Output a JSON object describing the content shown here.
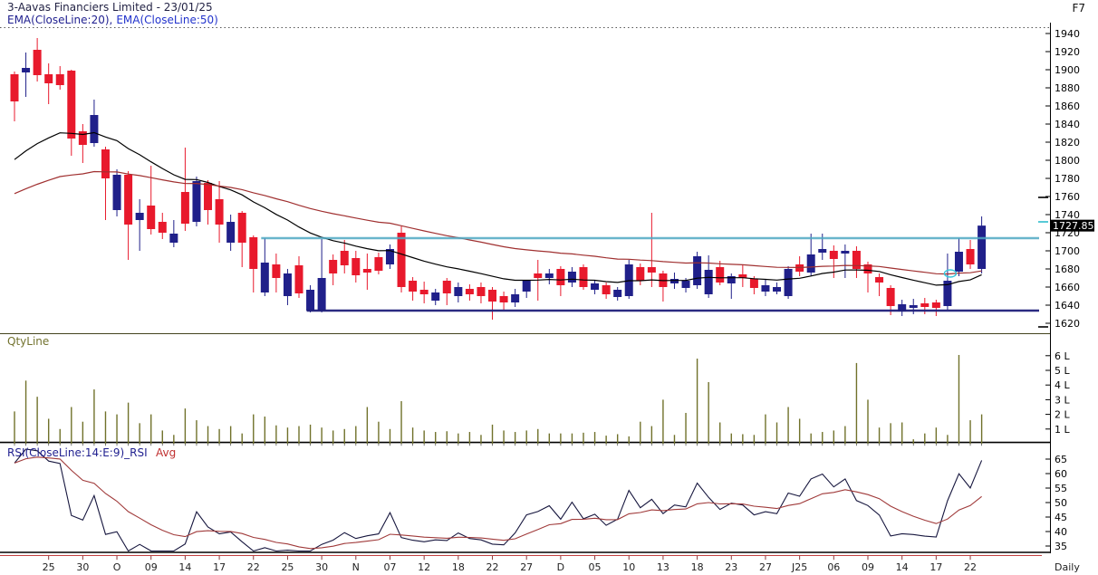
{
  "header": {
    "title": "3-Aavas Financiers Limited - 23/01/25",
    "ema20_label": "EMA(CloseLine:20),",
    "ema50_label": "EMA(CloseLine:50)",
    "hotkey": "F7"
  },
  "panels": {
    "volume_label": "QtyLine",
    "rsi_label": "RSI(CloseLine:14:E:9)_RSI",
    "rsi_avg_label": "Avg",
    "timeframe": "Daily",
    "last_price_tag": "1727.85"
  },
  "colors": {
    "bull": "#20208A",
    "bear": "#E8192C",
    "ema20": "#000000",
    "ema50": "#A03030",
    "resistance": "#4FA8C2",
    "support": "#1F1F7A",
    "volume": "#70712A",
    "rsi": "#16163E",
    "rsi_avg": "#A03A3A",
    "tag_bg": "#000000",
    "tag_fg": "#FFFFFF",
    "marker": "#35C8DC",
    "date_tick": "#8B3A3A",
    "rsi_baseline": "#C24040"
  },
  "overlays": {
    "resistance_price": 1714,
    "resistance_start_index": 22,
    "support_price": 1634,
    "support_start_index": 26,
    "right_edge_dashes": [
      {
        "price": 1759,
        "color": "#000000"
      },
      {
        "price": 1732,
        "color": "#2FBCCB"
      },
      {
        "price": 1616,
        "color": "#000000"
      }
    ],
    "signal_marker": {
      "index": 82,
      "price": 1675
    }
  },
  "indicators": {
    "ema20": {
      "period": 20,
      "seed": 1794
    },
    "ema50": {
      "period": 50,
      "seed": 1759
    },
    "rsi": {
      "period": 14,
      "avg_period": 9,
      "seed_gain": 7.0,
      "seed_loss": 4.0
    }
  },
  "chart_data": {
    "type": "candlestick",
    "title": "3-Aavas Financiers Limited - 23/01/25",
    "timeframe": "Daily",
    "last_close": 1727.85,
    "price_axis": {
      "min": 1620,
      "max": 1940,
      "step": 20
    },
    "volume_axis_ticks": [
      "1 L",
      "2 L",
      "3 L",
      "4 L",
      "5 L",
      "6 L"
    ],
    "rsi_axis_ticks": [
      65,
      60,
      55,
      50,
      45,
      40,
      35
    ],
    "x_tick_labels": [
      "25",
      "30",
      "O",
      "09",
      "14",
      "17",
      "22",
      "25",
      "30",
      "N",
      "07",
      "12",
      "18",
      "22",
      "27",
      "D",
      "05",
      "10",
      "13",
      "18",
      "23",
      "27",
      "J25",
      "06",
      "09",
      "14",
      "17",
      "22"
    ],
    "x_tick_start": 3,
    "x_tick_step": 3,
    "ohlc": [
      [
        1895,
        1898,
        1843,
        1865
      ],
      [
        1897,
        1919,
        1870,
        1902
      ],
      [
        1922,
        1935,
        1887,
        1894
      ],
      [
        1895,
        1907,
        1862,
        1885
      ],
      [
        1895,
        1904,
        1878,
        1883
      ],
      [
        1899,
        1900,
        1805,
        1824
      ],
      [
        1832,
        1840,
        1797,
        1817
      ],
      [
        1819,
        1867,
        1815,
        1850
      ],
      [
        1812,
        1815,
        1734,
        1780
      ],
      [
        1745,
        1790,
        1738,
        1784
      ],
      [
        1784,
        1788,
        1690,
        1729
      ],
      [
        1734,
        1757,
        1700,
        1742
      ],
      [
        1750,
        1794,
        1718,
        1724
      ],
      [
        1732,
        1742,
        1713,
        1720
      ],
      [
        1709,
        1734,
        1704,
        1719
      ],
      [
        1765,
        1814,
        1722,
        1730
      ],
      [
        1732,
        1782,
        1727,
        1777
      ],
      [
        1775,
        1778,
        1729,
        1745
      ],
      [
        1757,
        1777,
        1709,
        1729
      ],
      [
        1709,
        1740,
        1700,
        1732
      ],
      [
        1742,
        1744,
        1682,
        1709
      ],
      [
        1715,
        1717,
        1654,
        1680
      ],
      [
        1654,
        1714,
        1650,
        1687
      ],
      [
        1685,
        1697,
        1654,
        1670
      ],
      [
        1650,
        1680,
        1640,
        1675
      ],
      [
        1684,
        1694,
        1648,
        1653
      ],
      [
        1634,
        1662,
        1632,
        1657
      ],
      [
        1634,
        1713,
        1632,
        1670
      ],
      [
        1690,
        1696,
        1662,
        1675
      ],
      [
        1700,
        1712,
        1675,
        1684
      ],
      [
        1692,
        1700,
        1665,
        1673
      ],
      [
        1680,
        1697,
        1657,
        1676
      ],
      [
        1693,
        1698,
        1674,
        1678
      ],
      [
        1685,
        1707,
        1680,
        1702
      ],
      [
        1720,
        1727,
        1654,
        1660
      ],
      [
        1667,
        1671,
        1645,
        1655
      ],
      [
        1657,
        1666,
        1642,
        1652
      ],
      [
        1645,
        1658,
        1640,
        1654
      ],
      [
        1667,
        1670,
        1640,
        1653
      ],
      [
        1650,
        1665,
        1643,
        1660
      ],
      [
        1658,
        1663,
        1645,
        1652
      ],
      [
        1660,
        1665,
        1642,
        1650
      ],
      [
        1657,
        1660,
        1624,
        1644
      ],
      [
        1650,
        1655,
        1635,
        1643
      ],
      [
        1643,
        1658,
        1638,
        1652
      ],
      [
        1655,
        1668,
        1648,
        1667
      ],
      [
        1675,
        1690,
        1645,
        1670
      ],
      [
        1670,
        1680,
        1663,
        1675
      ],
      [
        1680,
        1683,
        1650,
        1662
      ],
      [
        1665,
        1682,
        1660,
        1677
      ],
      [
        1682,
        1685,
        1657,
        1660
      ],
      [
        1657,
        1668,
        1652,
        1664
      ],
      [
        1662,
        1665,
        1647,
        1652
      ],
      [
        1649,
        1660,
        1645,
        1657
      ],
      [
        1650,
        1690,
        1647,
        1685
      ],
      [
        1682,
        1686,
        1662,
        1667
      ],
      [
        1682,
        1742,
        1660,
        1676
      ],
      [
        1675,
        1678,
        1644,
        1660
      ],
      [
        1664,
        1676,
        1658,
        1669
      ],
      [
        1659,
        1670,
        1654,
        1667
      ],
      [
        1662,
        1699,
        1658,
        1694
      ],
      [
        1652,
        1695,
        1648,
        1679
      ],
      [
        1682,
        1689,
        1662,
        1665
      ],
      [
        1664,
        1675,
        1647,
        1672
      ],
      [
        1674,
        1684,
        1660,
        1670
      ],
      [
        1669,
        1672,
        1652,
        1659
      ],
      [
        1655,
        1669,
        1650,
        1662
      ],
      [
        1655,
        1665,
        1652,
        1660
      ],
      [
        1650,
        1683,
        1647,
        1680
      ],
      [
        1685,
        1694,
        1672,
        1677
      ],
      [
        1676,
        1719,
        1672,
        1696
      ],
      [
        1698,
        1719,
        1690,
        1702
      ],
      [
        1700,
        1706,
        1670,
        1691
      ],
      [
        1697,
        1707,
        1670,
        1700
      ],
      [
        1700,
        1705,
        1670,
        1680
      ],
      [
        1685,
        1688,
        1654,
        1675
      ],
      [
        1671,
        1675,
        1650,
        1665
      ],
      [
        1659,
        1662,
        1629,
        1639
      ],
      [
        1633,
        1646,
        1628,
        1641
      ],
      [
        1637,
        1647,
        1630,
        1640
      ],
      [
        1642,
        1648,
        1630,
        1638
      ],
      [
        1643,
        1646,
        1628,
        1637
      ],
      [
        1639,
        1697,
        1635,
        1667
      ],
      [
        1677,
        1714,
        1672,
        1699
      ],
      [
        1702,
        1712,
        1680,
        1685
      ],
      [
        1680,
        1738,
        1675,
        1727.85
      ]
    ],
    "volumes_lakh": [
      2.2,
      4.3,
      3.2,
      1.7,
      1.0,
      2.5,
      1.5,
      3.7,
      2.2,
      2.0,
      2.8,
      1.4,
      2.0,
      0.9,
      0.6,
      2.4,
      1.6,
      1.2,
      1.0,
      1.2,
      0.7,
      2.0,
      1.85,
      1.25,
      1.1,
      1.2,
      1.3,
      1.1,
      0.9,
      1.0,
      1.2,
      2.5,
      1.5,
      1.0,
      2.9,
      1.1,
      0.9,
      0.8,
      0.85,
      0.7,
      0.8,
      0.6,
      1.3,
      0.9,
      0.8,
      0.9,
      1.0,
      0.7,
      0.7,
      0.7,
      0.75,
      0.8,
      0.55,
      0.65,
      0.5,
      1.5,
      1.2,
      3.0,
      0.6,
      2.1,
      5.8,
      4.2,
      1.45,
      0.7,
      0.65,
      0.6,
      2.0,
      1.45,
      2.5,
      1.7,
      0.7,
      0.8,
      0.9,
      1.2,
      5.5,
      3.0,
      1.1,
      1.4,
      1.45,
      0.3,
      0.7,
      1.1,
      0.6,
      6.05,
      1.6,
      2.0
    ]
  }
}
